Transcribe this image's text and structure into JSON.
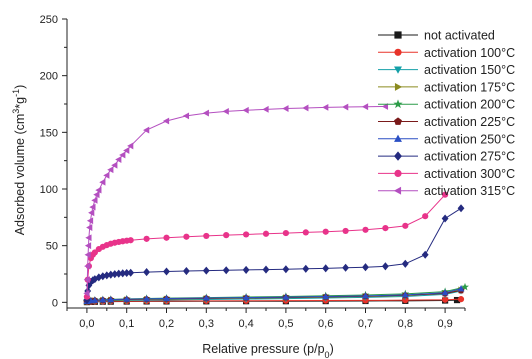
{
  "chart_data": {
    "type": "line",
    "xlabel_main": "Relative pressure (p/p",
    "xlabel_sub": "0",
    "xlabel_close": ")",
    "ylabel_main": "Adsorbed volume (cm",
    "ylabel_sup1": "3",
    "ylabel_mid": "*g",
    "ylabel_sup2": "-1",
    "ylabel_close": ")",
    "xlim": [
      -0.05,
      0.95
    ],
    "ylim": [
      -5,
      250
    ],
    "x_ticks": [
      "0,0",
      "0,1",
      "0,2",
      "0,3",
      "0,4",
      "0,5",
      "0,6",
      "0,7",
      "0,8",
      "0,9"
    ],
    "y_ticks": [
      "0",
      "50",
      "100",
      "150",
      "200",
      "250"
    ],
    "legend_position": "top-right",
    "series": [
      {
        "name": "not activated",
        "color": "#1a1a1a",
        "marker": "square",
        "x": [
          0.0,
          0.01,
          0.02,
          0.04,
          0.06,
          0.1,
          0.15,
          0.2,
          0.3,
          0.4,
          0.5,
          0.6,
          0.7,
          0.8,
          0.9,
          0.93
        ],
        "y": [
          0.2,
          0.4,
          0.5,
          0.6,
          0.6,
          0.7,
          0.8,
          0.8,
          0.9,
          1.0,
          1.0,
          1.1,
          1.2,
          1.3,
          1.6,
          2.0
        ]
      },
      {
        "name": "activation 100°C",
        "color": "#e8332a",
        "marker": "circle",
        "x": [
          0.0,
          0.01,
          0.02,
          0.04,
          0.06,
          0.1,
          0.15,
          0.2,
          0.3,
          0.4,
          0.5,
          0.6,
          0.7,
          0.8,
          0.9,
          0.94
        ],
        "y": [
          0.3,
          0.6,
          0.7,
          0.8,
          0.9,
          1.0,
          1.1,
          1.2,
          1.3,
          1.4,
          1.5,
          1.6,
          1.7,
          1.9,
          2.3,
          2.8
        ]
      },
      {
        "name": "activation 150°C",
        "color": "#14a0a8",
        "marker": "triangle-down",
        "x": [
          0.0,
          0.01,
          0.02,
          0.04,
          0.06,
          0.1,
          0.15,
          0.2,
          0.3,
          0.4,
          0.5,
          0.6,
          0.7,
          0.8,
          0.9,
          0.94
        ],
        "y": [
          0.5,
          1.0,
          1.2,
          1.4,
          1.5,
          1.7,
          1.9,
          2.1,
          2.5,
          2.9,
          3.3,
          3.8,
          4.4,
          5.2,
          7.0,
          10.0
        ]
      },
      {
        "name": "activation 175°C",
        "color": "#8b8b1f",
        "marker": "triangle-right",
        "x": [
          0.0,
          0.01,
          0.02,
          0.04,
          0.06,
          0.1,
          0.15,
          0.2,
          0.3,
          0.4,
          0.5,
          0.6,
          0.7,
          0.8,
          0.9,
          0.94
        ],
        "y": [
          0.6,
          1.2,
          1.5,
          1.8,
          2.0,
          2.3,
          2.6,
          2.9,
          3.3,
          3.7,
          4.1,
          4.6,
          5.2,
          6.0,
          8.0,
          11.0
        ]
      },
      {
        "name": "activation 200°C",
        "color": "#2c9c48",
        "marker": "star",
        "x": [
          0.0,
          0.01,
          0.02,
          0.04,
          0.06,
          0.1,
          0.15,
          0.2,
          0.3,
          0.4,
          0.5,
          0.6,
          0.7,
          0.8,
          0.9,
          0.95
        ],
        "y": [
          0.8,
          1.5,
          1.9,
          2.3,
          2.6,
          3.0,
          3.4,
          3.7,
          4.2,
          4.7,
          5.2,
          5.8,
          6.5,
          7.5,
          9.5,
          13.5
        ]
      },
      {
        "name": "activation 225°C",
        "color": "#7a1a1a",
        "marker": "pentagon",
        "x": [
          0.0,
          0.01,
          0.02,
          0.04,
          0.06,
          0.1,
          0.15,
          0.2,
          0.3,
          0.4,
          0.5,
          0.6,
          0.7,
          0.8,
          0.9,
          0.94
        ],
        "y": [
          0.7,
          1.3,
          1.7,
          2.0,
          2.2,
          2.5,
          2.8,
          3.1,
          3.5,
          3.9,
          4.3,
          4.8,
          5.4,
          6.2,
          7.8,
          10.5
        ]
      },
      {
        "name": "activation 250°C",
        "color": "#2a4fc4",
        "marker": "triangle-up",
        "x": [
          0.0,
          0.01,
          0.02,
          0.04,
          0.06,
          0.1,
          0.15,
          0.2,
          0.3,
          0.4,
          0.5,
          0.6,
          0.7,
          0.8,
          0.9,
          0.94
        ],
        "y": [
          0.8,
          1.5,
          1.8,
          2.2,
          2.4,
          2.8,
          3.1,
          3.4,
          3.8,
          4.2,
          4.6,
          5.1,
          5.7,
          6.6,
          8.5,
          12.0
        ]
      },
      {
        "name": "activation 275°C",
        "color": "#252b80",
        "marker": "diamond",
        "x": [
          0.0,
          0.002,
          0.005,
          0.01,
          0.015,
          0.02,
          0.03,
          0.04,
          0.05,
          0.06,
          0.07,
          0.08,
          0.09,
          0.1,
          0.11,
          0.15,
          0.2,
          0.25,
          0.3,
          0.35,
          0.4,
          0.45,
          0.5,
          0.55,
          0.6,
          0.65,
          0.7,
          0.75,
          0.8,
          0.85,
          0.9,
          0.94
        ],
        "y": [
          2,
          10,
          15,
          18,
          19.5,
          20.5,
          22,
          23,
          23.8,
          24.4,
          24.9,
          25.3,
          25.6,
          25.9,
          26.1,
          26.7,
          27.2,
          27.6,
          28.0,
          28.3,
          28.6,
          28.9,
          29.2,
          29.6,
          30.0,
          30.5,
          31.0,
          31.8,
          34.0,
          42.0,
          74.0,
          83.0
        ]
      },
      {
        "name": "activation 300°C",
        "color": "#e8338a",
        "marker": "circle",
        "x": [
          0.0,
          0.002,
          0.005,
          0.01,
          0.015,
          0.02,
          0.03,
          0.04,
          0.05,
          0.06,
          0.07,
          0.08,
          0.09,
          0.1,
          0.11,
          0.15,
          0.2,
          0.25,
          0.3,
          0.35,
          0.4,
          0.45,
          0.5,
          0.55,
          0.6,
          0.65,
          0.7,
          0.75,
          0.8,
          0.85,
          0.9
        ],
        "y": [
          5,
          20,
          32,
          39,
          42,
          44,
          47,
          49,
          50.5,
          51.7,
          52.6,
          53.3,
          53.9,
          54.4,
          54.8,
          56,
          57,
          57.9,
          58.6,
          59.3,
          59.9,
          60.5,
          61.1,
          61.7,
          62.3,
          63,
          64,
          65.5,
          67.5,
          76,
          95
        ]
      },
      {
        "name": "activation 315°C",
        "color": "#b44fc0",
        "marker": "triangle-left",
        "x": [
          0.0,
          0.001,
          0.002,
          0.003,
          0.004,
          0.005,
          0.007,
          0.009,
          0.012,
          0.015,
          0.02,
          0.025,
          0.03,
          0.04,
          0.05,
          0.06,
          0.07,
          0.08,
          0.09,
          0.1,
          0.11,
          0.15,
          0.2,
          0.25,
          0.3,
          0.35,
          0.4,
          0.45,
          0.5,
          0.55,
          0.6,
          0.65,
          0.7,
          0.75
        ],
        "y": [
          8,
          20,
          32,
          42,
          50,
          57,
          66,
          72,
          79,
          84,
          90,
          95,
          99,
          106,
          112,
          117,
          121,
          126,
          130,
          134,
          138,
          152,
          160,
          164.5,
          167,
          168.5,
          169.5,
          170.3,
          171,
          171.5,
          172,
          172.3,
          172.6,
          172.8
        ]
      }
    ]
  }
}
